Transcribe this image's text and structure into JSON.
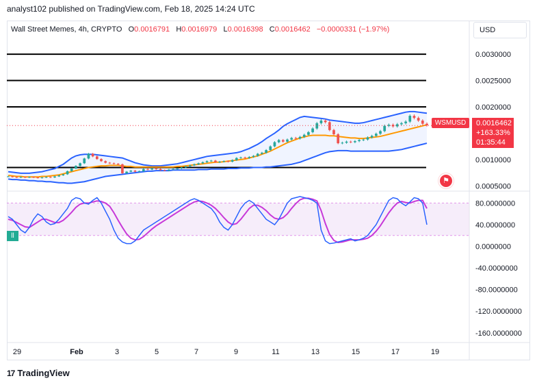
{
  "header": {
    "published_line": "analyst102 published on TradingView.com, Feb 18, 2025 14:24 UTC"
  },
  "legend": {
    "symbol_line": "Wall Street Memes, 4h, CRYPTO",
    "open_label": "O",
    "open_value": "0.0016791",
    "high_label": "H",
    "high_value": "0.0016979",
    "low_label": "L",
    "low_value": "0.0016398",
    "close_label": "C",
    "close_value": "0.0016462",
    "change": "−0.0000331 (−1.97%)"
  },
  "currency_button": "USD",
  "price_tag": {
    "symbol": "WSMUSD",
    "price": "0.0016462",
    "change_pct": "+163.33%",
    "countdown": "01:35:44"
  },
  "stoch_tag": "ll",
  "footer": {
    "brand": "TradingView",
    "logo_mark": "17"
  },
  "colors": {
    "up": "#26a69a",
    "down": "#ef5350",
    "bollinger_band": "#2962ff",
    "bollinger_basis": "#ff9800",
    "stoch_k": "#2962ff",
    "stoch_d": "#c738d8",
    "stoch_zone": "#ecd7f5",
    "sr_line": "#000000"
  },
  "chart_data": [
    {
      "type": "candlestick",
      "title": "Wall Street Memes, 4h, CRYPTO",
      "y_axis_ticks": [
        "0.0030000",
        "0.0025000",
        "0.0020000",
        "0.0010000",
        "0.0005000"
      ],
      "y_axis_tick_values": [
        0.003,
        0.0025,
        0.002,
        0.001,
        0.0005
      ],
      "ylim": [
        0.00044,
        0.0033
      ],
      "horizontal_levels": [
        0.003,
        0.0025,
        0.002,
        0.00085
      ],
      "current_price": 0.0016462,
      "x_axis_ticks": [
        "29",
        "Feb",
        "3",
        "5",
        "7",
        "9",
        "11",
        "13",
        "15",
        "17",
        "19"
      ],
      "close": [
        0.00068,
        0.00067,
        0.00066,
        0.00067,
        0.00066,
        0.00067,
        0.00066,
        0.00065,
        0.00066,
        0.00067,
        0.00066,
        0.00068,
        0.0007,
        0.00072,
        0.00078,
        0.00083,
        0.00088,
        0.00093,
        0.00102,
        0.00111,
        0.00106,
        0.00101,
        0.00097,
        0.00094,
        0.00093,
        0.00092,
        0.00091,
        0.00074,
        0.00077,
        0.00079,
        0.00077,
        0.00078,
        0.00082,
        0.00081,
        0.00083,
        0.00082,
        0.0008,
        0.00079,
        0.00081,
        0.00082,
        0.00083,
        0.00085,
        0.00087,
        0.00089,
        0.00091,
        0.00093,
        0.00095,
        0.00097,
        0.00098,
        0.00095,
        0.00096,
        0.00097,
        0.00096,
        0.00099,
        0.00103,
        0.00104,
        0.00103,
        0.00105,
        0.00107,
        0.00111,
        0.00113,
        0.00118,
        0.00125,
        0.00133,
        0.00137,
        0.00134,
        0.00138,
        0.00141,
        0.0014,
        0.00143,
        0.00147,
        0.00152,
        0.00159,
        0.00169,
        0.00174,
        0.00171,
        0.00156,
        0.00148,
        0.00131,
        0.00132,
        0.00134,
        0.00133,
        0.00135,
        0.00137,
        0.00138,
        0.00142,
        0.00145,
        0.00149,
        0.00154,
        0.00164,
        0.00166,
        0.00163,
        0.00167,
        0.00169,
        0.00172,
        0.00183,
        0.00179,
        0.00174,
        0.00168,
        0.00165
      ],
      "bollinger_upper": [
        0.00077,
        0.00076,
        0.00075,
        0.00074,
        0.00074,
        0.00074,
        0.00075,
        0.00076,
        0.00077,
        0.00079,
        0.00081,
        0.00083,
        0.00087,
        0.00091,
        0.00097,
        0.00103,
        0.00107,
        0.00109,
        0.0011,
        0.0011,
        0.0011,
        0.00109,
        0.00108,
        0.00107,
        0.00106,
        0.00105,
        0.00104,
        0.00103,
        0.001,
        0.00097,
        0.00094,
        0.00092,
        0.0009,
        0.00089,
        0.00088,
        0.00088,
        0.00088,
        0.00089,
        0.0009,
        0.00091,
        0.00092,
        0.00094,
        0.00096,
        0.00098,
        0.001,
        0.00102,
        0.00104,
        0.00106,
        0.00107,
        0.00108,
        0.00109,
        0.0011,
        0.00111,
        0.00112,
        0.00113,
        0.00115,
        0.00118,
        0.00121,
        0.00125,
        0.00129,
        0.00134,
        0.0014,
        0.00145,
        0.0015,
        0.00156,
        0.00163,
        0.00168,
        0.00172,
        0.00176,
        0.0018,
        0.00182,
        0.00181,
        0.0018,
        0.00179,
        0.00178,
        0.00177,
        0.00175,
        0.00174,
        0.00173,
        0.00172,
        0.00171,
        0.0017,
        0.00169,
        0.00169,
        0.0017,
        0.00172,
        0.00174,
        0.00176,
        0.00178,
        0.0018,
        0.00182,
        0.00184,
        0.00186,
        0.00188,
        0.0019,
        0.00191,
        0.00191,
        0.0019,
        0.00189,
        0.00188
      ],
      "bollinger_basis": [
        0.0007,
        0.00069,
        0.00068,
        0.00068,
        0.00067,
        0.00067,
        0.00067,
        0.00067,
        0.00068,
        0.00068,
        0.00069,
        0.0007,
        0.00071,
        0.00073,
        0.00075,
        0.00077,
        0.00079,
        0.00081,
        0.00083,
        0.00085,
        0.00086,
        0.00087,
        0.00088,
        0.00088,
        0.00089,
        0.00089,
        0.00089,
        0.00088,
        0.00087,
        0.00087,
        0.00086,
        0.00086,
        0.00086,
        0.00086,
        0.00086,
        0.00086,
        0.00086,
        0.00086,
        0.00086,
        0.00086,
        0.00087,
        0.00087,
        0.00088,
        0.00089,
        0.0009,
        0.00091,
        0.00092,
        0.00093,
        0.00094,
        0.00095,
        0.00095,
        0.00096,
        0.00097,
        0.00098,
        0.00099,
        0.001,
        0.00101,
        0.00103,
        0.00105,
        0.00107,
        0.0011,
        0.00113,
        0.00116,
        0.0012,
        0.00124,
        0.00128,
        0.00132,
        0.00135,
        0.00138,
        0.00141,
        0.00143,
        0.00145,
        0.00146,
        0.00146,
        0.00146,
        0.00146,
        0.00145,
        0.00145,
        0.00144,
        0.00143,
        0.00142,
        0.00141,
        0.00141,
        0.0014,
        0.0014,
        0.00141,
        0.00142,
        0.00143,
        0.00144,
        0.00146,
        0.00148,
        0.0015,
        0.00152,
        0.00154,
        0.00156,
        0.00158,
        0.0016,
        0.00162,
        0.00164,
        0.00166
      ],
      "bollinger_lower": [
        0.00063,
        0.00062,
        0.00062,
        0.00061,
        0.00061,
        0.0006,
        0.0006,
        0.00059,
        0.00059,
        0.00058,
        0.00058,
        0.00057,
        0.00056,
        0.00056,
        0.00055,
        0.00055,
        0.00056,
        0.00057,
        0.00058,
        0.0006,
        0.00062,
        0.00064,
        0.00066,
        0.00068,
        0.00069,
        0.0007,
        0.00071,
        0.00072,
        0.00073,
        0.00074,
        0.00075,
        0.00076,
        0.00077,
        0.00078,
        0.00078,
        0.00079,
        0.00079,
        0.00079,
        0.00079,
        0.0008,
        0.0008,
        0.0008,
        0.0008,
        0.0008,
        0.0008,
        0.00081,
        0.00081,
        0.00081,
        0.00082,
        0.00082,
        0.00082,
        0.00082,
        0.00083,
        0.00083,
        0.00083,
        0.00084,
        0.00084,
        0.00084,
        0.00085,
        0.00085,
        0.00085,
        0.00086,
        0.00086,
        0.00087,
        0.00088,
        0.00089,
        0.0009,
        0.00091,
        0.00093,
        0.00095,
        0.00098,
        0.00101,
        0.00104,
        0.00107,
        0.0011,
        0.00113,
        0.00115,
        0.00116,
        0.00117,
        0.00117,
        0.00117,
        0.00116,
        0.00116,
        0.00116,
        0.00116,
        0.00116,
        0.00116,
        0.00116,
        0.00116,
        0.00116,
        0.00116,
        0.00117,
        0.00118,
        0.00119,
        0.00121,
        0.00123,
        0.00125,
        0.00127,
        0.00129,
        0.00131
      ]
    },
    {
      "type": "line",
      "title": "",
      "y_axis_ticks": [
        "80.0000000",
        "40.0000000",
        "0.0000000",
        "-40.0000000",
        "-80.0000000",
        "-120.0000000",
        "-160.0000000"
      ],
      "y_axis_tick_values": [
        80,
        40,
        0,
        -40,
        -80,
        -120,
        -160
      ],
      "ylim": [
        -178,
        97
      ],
      "band": [
        20,
        80
      ],
      "series": [
        {
          "values": [
            55,
            50,
            40,
            30,
            25,
            35,
            50,
            60,
            55,
            45,
            40,
            42,
            50,
            60,
            70,
            85,
            90,
            88,
            80,
            78,
            85,
            90,
            80,
            65,
            50,
            30,
            15,
            8,
            5,
            5,
            10,
            20,
            30,
            35,
            40,
            45,
            50,
            55,
            60,
            65,
            70,
            75,
            80,
            85,
            88,
            85,
            80,
            75,
            70,
            60,
            45,
            35,
            30,
            40,
            55,
            70,
            80,
            85,
            80,
            70,
            60,
            50,
            45,
            40,
            50,
            65,
            80,
            88,
            90,
            92,
            90,
            88,
            85,
            80,
            30,
            10,
            5,
            6,
            8,
            10,
            12,
            14,
            10,
            12,
            15,
            20,
            30,
            40,
            55,
            70,
            85,
            90,
            88,
            80,
            75,
            82,
            90,
            88,
            80,
            40
          ]
        },
        {
          "values": [
            50,
            48,
            44,
            40,
            36,
            35,
            40,
            45,
            50,
            50,
            47,
            44,
            44,
            48,
            55,
            63,
            72,
            78,
            80,
            80,
            82,
            84,
            83,
            80,
            74,
            62,
            48,
            35,
            23,
            15,
            12,
            13,
            18,
            25,
            32,
            38,
            43,
            48,
            53,
            58,
            63,
            68,
            73,
            78,
            82,
            84,
            83,
            80,
            76,
            70,
            62,
            53,
            45,
            40,
            42,
            50,
            60,
            70,
            76,
            76,
            72,
            66,
            58,
            52,
            50,
            53,
            60,
            70,
            79,
            86,
            89,
            89,
            87,
            84,
            66,
            42,
            22,
            11,
            7,
            8,
            10,
            12,
            12,
            12,
            13,
            15,
            20,
            28,
            38,
            50,
            62,
            72,
            80,
            83,
            81,
            80,
            83,
            85,
            85,
            70
          ]
        }
      ]
    }
  ]
}
